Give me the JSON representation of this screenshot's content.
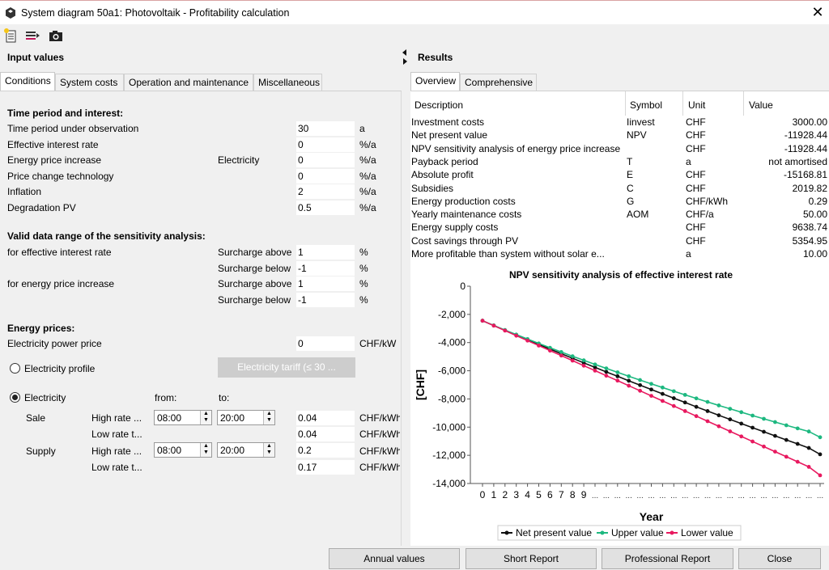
{
  "window": {
    "title": "System diagram 50a1: Photovoltaik - Profitability calculation"
  },
  "toolbar": {
    "icons": [
      "new-document-icon",
      "export-list-icon",
      "camera-icon"
    ]
  },
  "input": {
    "heading": "Input values",
    "tabs": [
      "Conditions",
      "System costs",
      "Operation and maintenance",
      "Miscellaneous"
    ],
    "time": {
      "heading": "Time period and interest:",
      "rows": [
        {
          "label": "Time period under observation",
          "sub": "",
          "value": "30",
          "unit": "a"
        },
        {
          "label": "Effective interest rate",
          "sub": "",
          "value": "0",
          "unit": "%/a"
        },
        {
          "label": "Energy price increase",
          "sub": "Electricity",
          "value": "0",
          "unit": "%/a"
        },
        {
          "label": "Price change technology",
          "sub": "",
          "value": "0",
          "unit": "%/a"
        },
        {
          "label": "Inflation",
          "sub": "",
          "value": "2",
          "unit": "%/a"
        },
        {
          "label": "Degradation PV",
          "sub": "",
          "value": "0.5",
          "unit": "%/a"
        }
      ]
    },
    "sens": {
      "heading": "Valid data range of the sensitivity analysis:",
      "rows": [
        {
          "label": "for effective interest rate",
          "sub": "Surcharge above",
          "value": "1",
          "unit": "%"
        },
        {
          "label": "",
          "sub": "Surcharge below",
          "value": "-1",
          "unit": "%"
        },
        {
          "label": "for energy price increase",
          "sub": "Surcharge above",
          "value": "1",
          "unit": "%"
        },
        {
          "label": "",
          "sub": "Surcharge below",
          "value": "-1",
          "unit": "%"
        }
      ]
    },
    "energy": {
      "heading": "Energy prices:",
      "power_label": "Electricity power price",
      "power_value": "0",
      "power_unit": "CHF/kW",
      "profile_label": "Electricity profile",
      "tariff_button": "Electricity tariff (≤ 30 ...",
      "electricity_label": "Electricity",
      "from_label": "from:",
      "to_label": "to:",
      "sale_label": "Sale",
      "supply_label": "Supply",
      "sale_high_label": "High rate ...",
      "sale_high_from": "08:00",
      "sale_high_to": "20:00",
      "sale_high_value": "0.04",
      "sale_high_unit": "CHF/kWh",
      "sale_low_label": "Low rate t...",
      "sale_low_value": "0.04",
      "sale_low_unit": "CHF/kWh",
      "supply_high_label": "High rate ...",
      "supply_high_from": "08:00",
      "supply_high_to": "20:00",
      "supply_high_value": "0.2",
      "supply_high_unit": "CHF/kWh",
      "supply_low_label": "Low rate t...",
      "supply_low_value": "0.17",
      "supply_low_unit": "CHF/kWh"
    }
  },
  "results": {
    "heading": "Results",
    "tabs": [
      "Overview",
      "Comprehensive"
    ],
    "columns": [
      "Description",
      "Symbol",
      "Unit",
      "Value"
    ],
    "rows": [
      [
        "Investment costs",
        "Iinvest",
        "CHF",
        "3000.00"
      ],
      [
        "Net present value",
        "NPV",
        "CHF",
        "-11928.44"
      ],
      [
        "NPV sensitivity analysis of energy price increase",
        "",
        "CHF",
        "-11928.44"
      ],
      [
        "Payback period",
        "T",
        "a",
        "not amortised"
      ],
      [
        "Absolute profit",
        "E",
        "CHF",
        "-15168.81"
      ],
      [
        "Subsidies",
        "C",
        "CHF",
        "2019.82"
      ],
      [
        "Energy production costs",
        "G",
        "CHF/kWh",
        "0.29"
      ],
      [
        "Yearly maintenance costs",
        "AOM",
        "CHF/a",
        "50.00"
      ],
      [
        "Energy supply costs",
        "",
        "CHF",
        "9638.74"
      ],
      [
        "Cost savings through PV",
        "",
        "CHF",
        "5354.95"
      ],
      [
        "More profitable than system without solar e...",
        "",
        "a",
        "10.00"
      ]
    ]
  },
  "chart_data": {
    "type": "line",
    "title": "NPV sensitivity analysis of effective interest rate",
    "xlabel": "Year",
    "ylabel": "[CHF]",
    "ylim": [
      -14000,
      0
    ],
    "yticks": [
      "0",
      "-2,000",
      "-4,000",
      "-6,000",
      "-8,000",
      "-10,000",
      "-12,000",
      "-14,000"
    ],
    "ytick_values": [
      0,
      -2000,
      -4000,
      -6000,
      -8000,
      -10000,
      -12000,
      -14000
    ],
    "xtick_labels_shown": [
      "0",
      "1",
      "2",
      "3",
      "4",
      "5",
      "6",
      "7",
      "8",
      "9"
    ],
    "x": [
      0,
      1,
      2,
      3,
      4,
      5,
      6,
      7,
      8,
      9,
      10,
      11,
      12,
      13,
      14,
      15,
      16,
      17,
      18,
      19,
      20,
      21,
      22,
      23,
      24,
      25,
      26,
      27,
      28,
      29,
      30
    ],
    "legend_position": "bottom",
    "series": [
      {
        "name": "Net present value",
        "color": "#111111",
        "values": [
          -2450,
          -2790,
          -3130,
          -3470,
          -3800,
          -4130,
          -4460,
          -4790,
          -5110,
          -5440,
          -5760,
          -6080,
          -6390,
          -6710,
          -7020,
          -7330,
          -7640,
          -7950,
          -8250,
          -8560,
          -8860,
          -9160,
          -9450,
          -9750,
          -10040,
          -10330,
          -10620,
          -10910,
          -11190,
          -11480,
          -11928
        ]
      },
      {
        "name": "Upper value",
        "color": "#1db880",
        "values": [
          -2450,
          -2780,
          -3110,
          -3430,
          -3750,
          -4060,
          -4370,
          -4670,
          -4970,
          -5260,
          -5550,
          -5830,
          -6110,
          -6390,
          -6660,
          -6930,
          -7190,
          -7450,
          -7710,
          -7960,
          -8210,
          -8460,
          -8700,
          -8940,
          -9180,
          -9410,
          -9640,
          -9870,
          -10090,
          -10310,
          -10720
        ]
      },
      {
        "name": "Lower value",
        "color": "#e8195f",
        "values": [
          -2450,
          -2800,
          -3150,
          -3510,
          -3860,
          -4210,
          -4570,
          -4920,
          -5280,
          -5640,
          -5990,
          -6350,
          -6700,
          -7060,
          -7420,
          -7780,
          -8140,
          -8500,
          -8860,
          -9220,
          -9580,
          -9940,
          -10300,
          -10660,
          -11020,
          -11380,
          -11740,
          -12100,
          -12460,
          -12820,
          -13420
        ]
      }
    ]
  },
  "buttons": {
    "annual": "Annual values",
    "short": "Short Report",
    "professional": "Professional Report",
    "close": "Close"
  }
}
